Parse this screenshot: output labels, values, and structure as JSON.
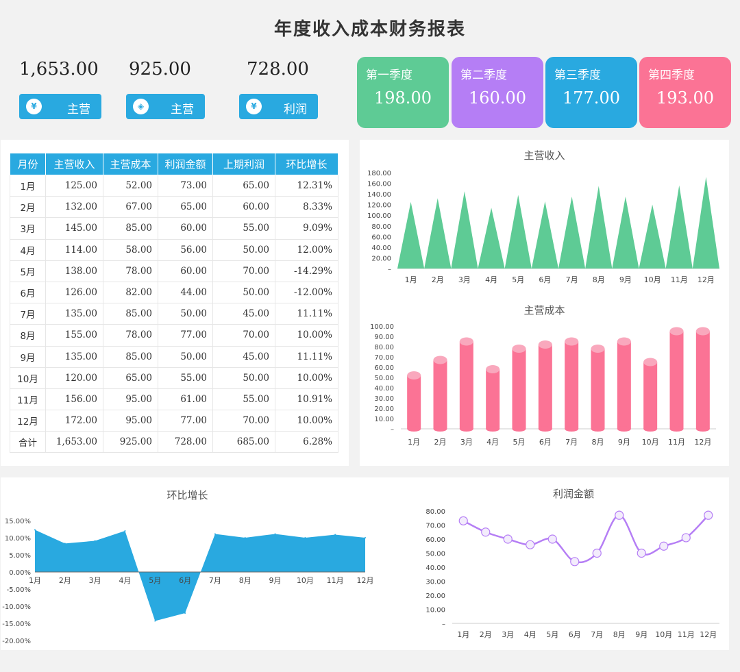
{
  "title": "年度收入成本财务报表",
  "kpis": [
    {
      "value": "1,653.00",
      "label": "主营",
      "icon": "money-bag-icon",
      "glyph": "¥"
    },
    {
      "value": "925.00",
      "label": "主营",
      "icon": "tag-icon",
      "glyph": "◈"
    },
    {
      "value": "728.00",
      "label": "利润",
      "icon": "yen-coin-icon",
      "glyph": "¥"
    }
  ],
  "quarters": [
    {
      "label": "第一季度",
      "value": "198.00",
      "color": "#5ecb95"
    },
    {
      "label": "第二季度",
      "value": "160.00",
      "color": "#b57ef5"
    },
    {
      "label": "第三季度",
      "value": "177.00",
      "color": "#29a9e0"
    },
    {
      "label": "第四季度",
      "value": "193.00",
      "color": "#fb7395"
    }
  ],
  "table": {
    "headers": [
      "月份",
      "主营收入",
      "主营成本",
      "利润金额",
      "上期利润",
      "环比增长"
    ],
    "rows": [
      [
        "1月",
        "125.00",
        "52.00",
        "73.00",
        "65.00",
        "12.31%"
      ],
      [
        "2月",
        "132.00",
        "67.00",
        "65.00",
        "60.00",
        "8.33%"
      ],
      [
        "3月",
        "145.00",
        "85.00",
        "60.00",
        "55.00",
        "9.09%"
      ],
      [
        "4月",
        "114.00",
        "58.00",
        "56.00",
        "50.00",
        "12.00%"
      ],
      [
        "5月",
        "138.00",
        "78.00",
        "60.00",
        "70.00",
        "-14.29%"
      ],
      [
        "6月",
        "126.00",
        "82.00",
        "44.00",
        "50.00",
        "-12.00%"
      ],
      [
        "7月",
        "135.00",
        "85.00",
        "50.00",
        "45.00",
        "11.11%"
      ],
      [
        "8月",
        "155.00",
        "78.00",
        "77.00",
        "70.00",
        "10.00%"
      ],
      [
        "9月",
        "135.00",
        "85.00",
        "50.00",
        "45.00",
        "11.11%"
      ],
      [
        "10月",
        "120.00",
        "65.00",
        "55.00",
        "50.00",
        "10.00%"
      ],
      [
        "11月",
        "156.00",
        "95.00",
        "61.00",
        "55.00",
        "10.91%"
      ],
      [
        "12月",
        "172.00",
        "95.00",
        "77.00",
        "70.00",
        "10.00%"
      ],
      [
        "合计",
        "1,653.00",
        "925.00",
        "728.00",
        "685.00",
        "6.28%"
      ]
    ]
  },
  "chart_data": [
    {
      "type": "bar",
      "title": "主营收入",
      "categories": [
        "1月",
        "2月",
        "3月",
        "4月",
        "5月",
        "6月",
        "7月",
        "8月",
        "9月",
        "10月",
        "11月",
        "12月"
      ],
      "values": [
        125,
        132,
        145,
        114,
        138,
        126,
        135,
        155,
        135,
        120,
        156,
        172
      ],
      "ylim": [
        0,
        180
      ],
      "yticks": [
        "–",
        "20.00",
        "40.00",
        "60.00",
        "80.00",
        "100.00",
        "120.00",
        "140.00",
        "160.00",
        "180.00"
      ],
      "color": "#5ecb95",
      "shape": "triangle"
    },
    {
      "type": "bar",
      "title": "主营成本",
      "categories": [
        "1月",
        "2月",
        "3月",
        "4月",
        "5月",
        "6月",
        "7月",
        "8月",
        "9月",
        "10月",
        "11月",
        "12月"
      ],
      "values": [
        52,
        67,
        85,
        58,
        78,
        82,
        85,
        78,
        85,
        65,
        95,
        95
      ],
      "ylim": [
        0,
        100
      ],
      "yticks": [
        "–",
        "10.00",
        "20.00",
        "30.00",
        "40.00",
        "50.00",
        "60.00",
        "70.00",
        "80.00",
        "90.00",
        "100.00"
      ],
      "color": "#fb7395",
      "shape": "cylinder"
    },
    {
      "type": "area",
      "title": "环比增长",
      "categories": [
        "1月",
        "2月",
        "3月",
        "4月",
        "5月",
        "6月",
        "7月",
        "8月",
        "9月",
        "10月",
        "11月",
        "12月"
      ],
      "values": [
        12.31,
        8.33,
        9.09,
        12.0,
        -14.29,
        -12.0,
        11.11,
        10.0,
        11.11,
        10.0,
        10.91,
        10.0
      ],
      "ylim": [
        -20,
        15
      ],
      "yticks": [
        "-20.00%",
        "-15.00%",
        "-10.00%",
        "-5.00%",
        "0.00%",
        "5.00%",
        "10.00%",
        "15.00%"
      ],
      "color": "#29a9e0"
    },
    {
      "type": "line",
      "title": "利润金额",
      "categories": [
        "1月",
        "2月",
        "3月",
        "4月",
        "5月",
        "6月",
        "7月",
        "8月",
        "9月",
        "10月",
        "11月",
        "12月"
      ],
      "values": [
        73,
        65,
        60,
        56,
        60,
        44,
        50,
        77,
        50,
        55,
        61,
        77
      ],
      "ylim": [
        0,
        80
      ],
      "yticks": [
        "–",
        "10.00",
        "20.00",
        "30.00",
        "40.00",
        "50.00",
        "60.00",
        "70.00",
        "80.00"
      ],
      "color": "#b57ef5"
    }
  ]
}
